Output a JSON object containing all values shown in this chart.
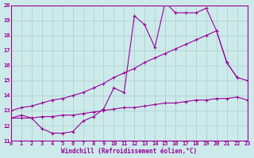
{
  "xlabel": "Windchill (Refroidissement éolien,°C)",
  "xlim": [
    0,
    23
  ],
  "ylim": [
    11,
    20
  ],
  "xticks": [
    0,
    1,
    2,
    3,
    4,
    5,
    6,
    7,
    8,
    9,
    10,
    11,
    12,
    13,
    14,
    15,
    16,
    17,
    18,
    19,
    20,
    21,
    22,
    23
  ],
  "yticks": [
    11,
    12,
    13,
    14,
    15,
    16,
    17,
    18,
    19,
    20
  ],
  "bg_color": "#cdeaea",
  "line_color": "#990099",
  "grid_color": "#aacccc",
  "series1_x": [
    0,
    1,
    2,
    3,
    4,
    5,
    6,
    7,
    8,
    9,
    10,
    11,
    12,
    13,
    14,
    15,
    16,
    17,
    18,
    19,
    20,
    21,
    22
  ],
  "series1_y": [
    12.5,
    12.7,
    12.5,
    11.8,
    11.5,
    11.5,
    11.6,
    12.3,
    12.6,
    13.1,
    14.5,
    14.2,
    19.3,
    18.7,
    17.2,
    20.2,
    19.5,
    19.5,
    19.5,
    19.8,
    18.3,
    16.2,
    15.2
  ],
  "series2_x": [
    0,
    1,
    2,
    3,
    4,
    5,
    6,
    7,
    8,
    9,
    10,
    11,
    12,
    13,
    14,
    15,
    16,
    17,
    18,
    19,
    20,
    21,
    22,
    23
  ],
  "series2_y": [
    13.0,
    13.2,
    13.3,
    13.5,
    13.7,
    13.8,
    14.0,
    14.2,
    14.5,
    14.8,
    15.2,
    15.5,
    15.8,
    16.2,
    16.5,
    16.8,
    17.1,
    17.4,
    17.7,
    18.0,
    18.3,
    16.2,
    15.2,
    15.0
  ],
  "series3_x": [
    0,
    1,
    2,
    3,
    4,
    5,
    6,
    7,
    8,
    9,
    10,
    11,
    12,
    13,
    14,
    15,
    16,
    17,
    18,
    19,
    20,
    21,
    22,
    23
  ],
  "series3_y": [
    12.5,
    12.5,
    12.5,
    12.6,
    12.6,
    12.7,
    12.7,
    12.8,
    12.9,
    13.0,
    13.1,
    13.2,
    13.2,
    13.3,
    13.4,
    13.5,
    13.5,
    13.6,
    13.7,
    13.7,
    13.8,
    13.8,
    13.9,
    13.7
  ]
}
